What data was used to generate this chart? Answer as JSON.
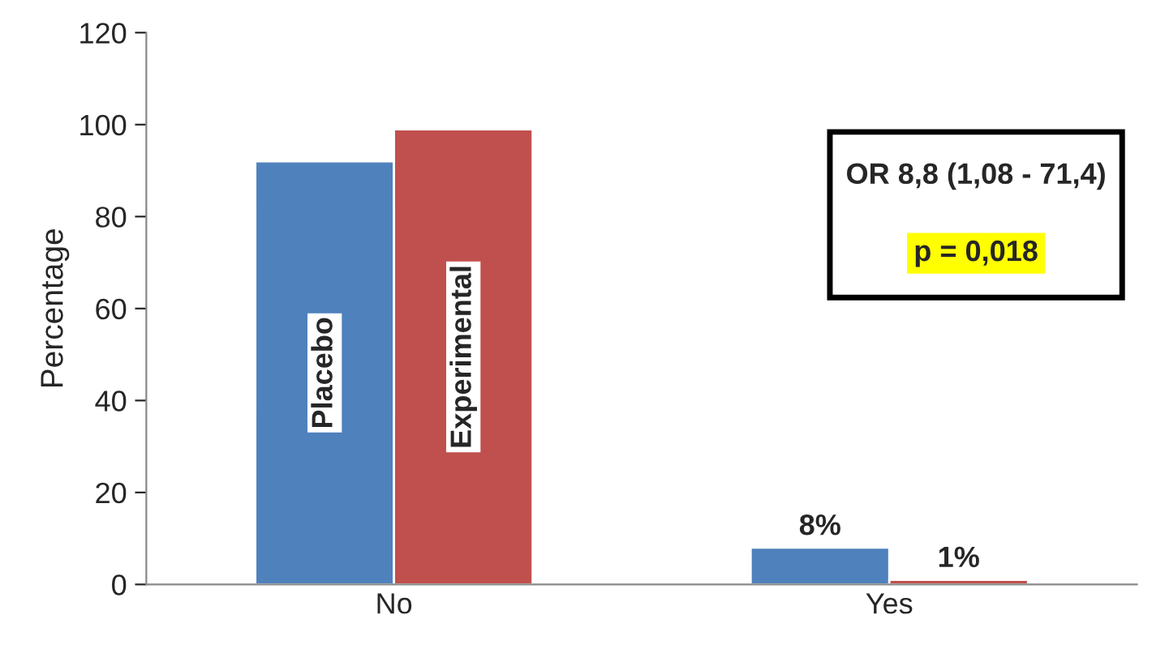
{
  "chart_data": {
    "type": "bar",
    "ylabel": "Percentage",
    "categories": [
      "No",
      "Yes"
    ],
    "series": [
      {
        "name": "Placebo",
        "color": "#4f81bd",
        "values": [
          92,
          8
        ],
        "value_labels": [
          null,
          "8%"
        ]
      },
      {
        "name": "Experimental",
        "color": "#c0504d",
        "values": [
          99,
          1
        ],
        "value_labels": [
          null,
          "1%"
        ]
      }
    ],
    "ylim": [
      0,
      120
    ],
    "yticks": [
      0,
      20,
      40,
      60,
      80,
      100,
      120
    ],
    "grid": false,
    "legend": false,
    "annotations": [
      "OR 8,8 (1,08 - 71,4)",
      "p = 0,018"
    ]
  }
}
